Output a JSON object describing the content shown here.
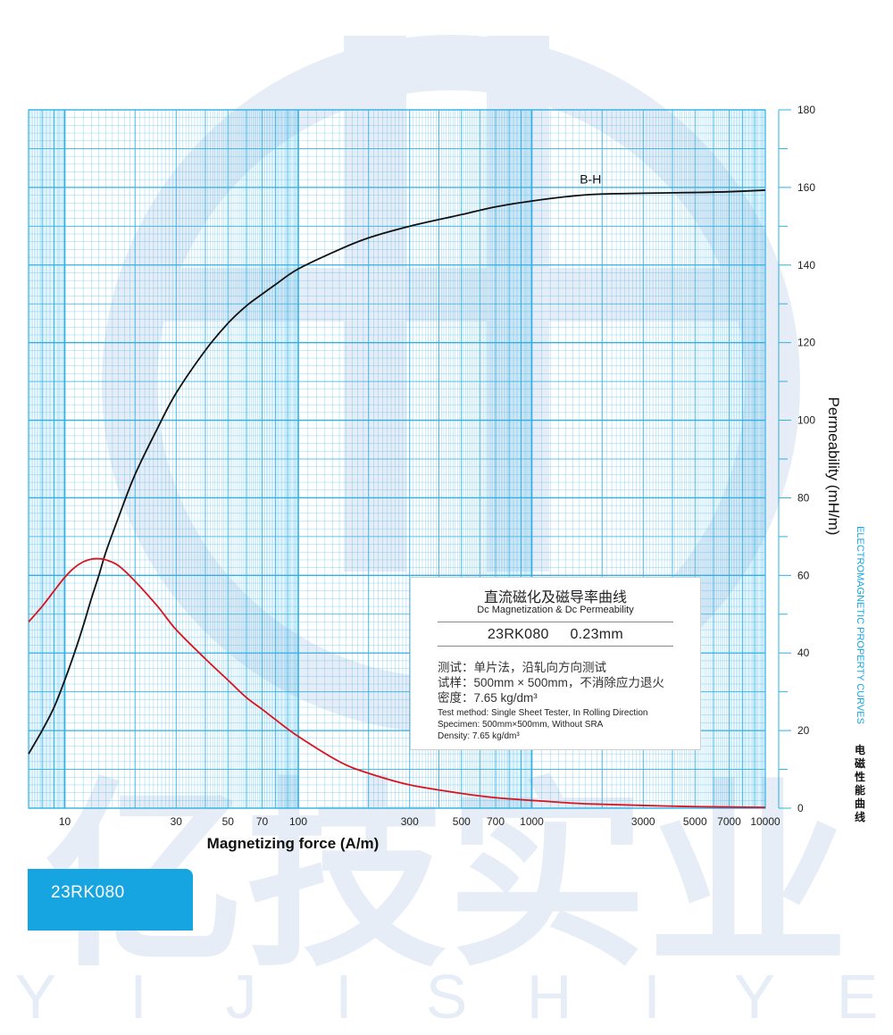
{
  "colors": {
    "grid": "#2fb0e6",
    "curve_bh": "#111111",
    "curve_permeability": "#d9141e",
    "accent": "#17a5e2",
    "watermark": "#e6edf6"
  },
  "watermark": {
    "brand_cn": "亿技实业",
    "brand_letters": "YIJISHIYE"
  },
  "chart_data": {
    "type": "line",
    "xscale": "log",
    "xlim": [
      7,
      10000
    ],
    "ylim": [
      0,
      180
    ],
    "grid": true,
    "xlabel": "Magnetizing force (A/m)",
    "ylabel": "Permeability (mH/m)",
    "xticks": [
      10,
      30,
      50,
      70,
      100,
      300,
      500,
      700,
      1000,
      3000,
      5000,
      7000,
      10000
    ],
    "xtick_labels": [
      "10",
      "30",
      "50",
      "70",
      "100",
      "300",
      "500",
      "700",
      "1000",
      "3000",
      "5000",
      "7000",
      "10000"
    ],
    "yticks": [
      0,
      20,
      40,
      60,
      80,
      100,
      120,
      140,
      160,
      180
    ],
    "ytick_labels": [
      "0",
      "20",
      "40",
      "60",
      "80",
      "100",
      "120",
      "140",
      "160",
      "180"
    ],
    "annotations": [
      {
        "text": "B-H",
        "x": 2000,
        "y": 161
      }
    ],
    "series": [
      {
        "name": "B-H",
        "x": [
          7,
          8,
          9,
          10,
          11,
          12,
          13,
          14,
          15,
          17,
          20,
          25,
          30,
          40,
          50,
          60,
          70,
          80,
          100,
          150,
          200,
          300,
          500,
          700,
          1000,
          1500,
          2000,
          3000,
          5000,
          7000,
          10000
        ],
        "y": [
          14,
          20,
          26,
          33,
          40,
          47,
          54,
          60,
          66,
          75,
          86,
          98,
          107,
          118,
          125,
          129.5,
          132.5,
          135,
          139,
          144,
          147,
          150,
          153,
          155,
          156.5,
          157.8,
          158.3,
          158.5,
          158.7,
          158.9,
          159.3
        ]
      },
      {
        "name": "Permeability",
        "x": [
          7,
          8,
          9,
          10,
          11,
          12,
          13,
          14,
          15,
          17,
          20,
          25,
          30,
          40,
          50,
          60,
          70,
          80,
          100,
          150,
          200,
          300,
          500,
          700,
          1000,
          1500,
          2000,
          3000,
          5000,
          7000,
          10000
        ],
        "y": [
          48,
          52,
          56,
          59.5,
          62,
          63.5,
          64.2,
          64.3,
          64,
          62.5,
          58.5,
          52,
          46,
          38.5,
          33,
          28.5,
          25.5,
          22.8,
          18.5,
          12,
          9,
          6,
          3.8,
          2.7,
          2,
          1.3,
          1,
          0.7,
          0.4,
          0.3,
          0.2
        ]
      }
    ]
  },
  "legend_box": {
    "title_cn": "直流磁化及磁导率曲线",
    "title_en": "Dc Magnetization & Dc Permeability",
    "grade": "23RK080     0.23mm",
    "cn_lines": [
      "测试：单片法，沿轧向方向测试",
      "试样：500mm × 500mm，不消除应力退火",
      "密度：7.65 kg/dm³"
    ],
    "en_lines": [
      "Test method: Single Sheet Tester, In Rolling Direction",
      "Specimen: 500mm×500mm, Without SRA",
      "Density: 7.65 kg/dm³"
    ]
  },
  "side_caption": {
    "en": "ELECTROMAGNETIC PROPERTY CURVES",
    "cn": "电磁性能曲线"
  },
  "grade_tab": {
    "label": "23RK080"
  }
}
